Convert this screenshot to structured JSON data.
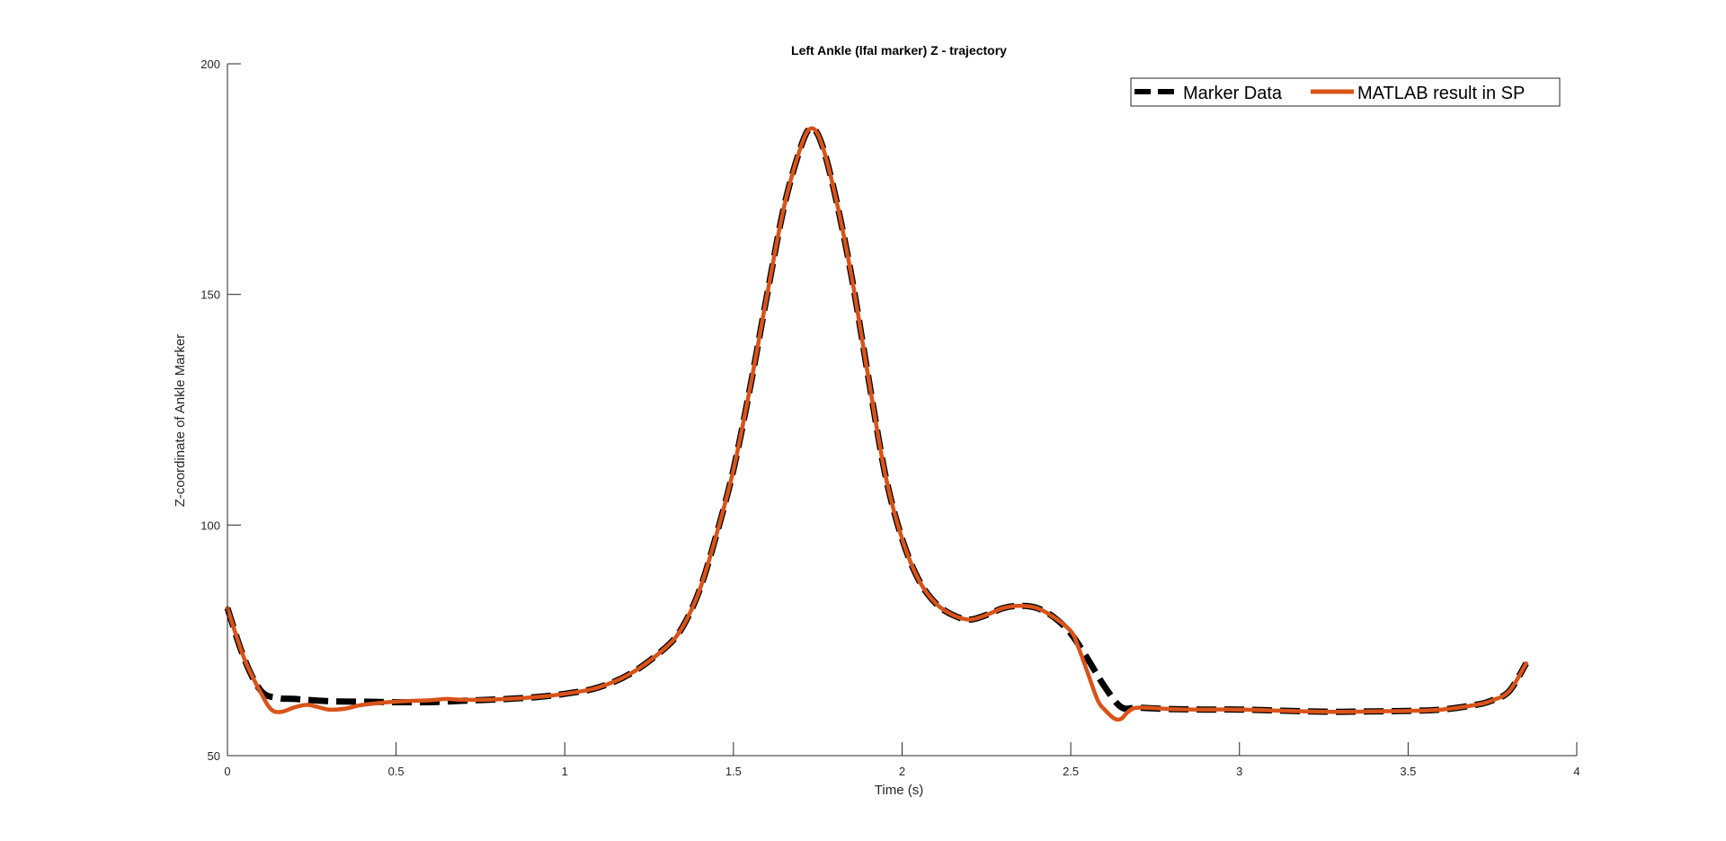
{
  "chart_data": {
    "type": "line",
    "title": "Left Ankle (lfal marker) Z - trajectory",
    "xlabel": "Time (s)",
    "ylabel": "Z-coordinate of Ankle Marker",
    "xlim": [
      0,
      4
    ],
    "ylim": [
      50,
      200
    ],
    "xticks": [
      0,
      0.5,
      1,
      1.5,
      2,
      2.5,
      3,
      3.5,
      4
    ],
    "xtick_labels": [
      "0",
      "0.5",
      "1",
      "1.5",
      "2",
      "2.5",
      "3",
      "3.5",
      "4"
    ],
    "yticks": [
      50,
      100,
      150,
      200
    ],
    "ytick_labels": [
      "50",
      "100",
      "150",
      "200"
    ],
    "grid": false,
    "legend_position": "top-right",
    "series": [
      {
        "name": "Marker Data",
        "color": "#000000",
        "line_style": "dashed",
        "x": [
          0,
          0.05,
          0.1,
          0.15,
          0.2,
          0.3,
          0.4,
          0.5,
          0.6,
          0.7,
          0.8,
          0.9,
          1.0,
          1.1,
          1.2,
          1.3,
          1.35,
          1.4,
          1.45,
          1.5,
          1.55,
          1.6,
          1.65,
          1.7,
          1.73,
          1.76,
          1.8,
          1.85,
          1.9,
          1.95,
          2.0,
          2.05,
          2.1,
          2.15,
          2.2,
          2.25,
          2.3,
          2.35,
          2.4,
          2.45,
          2.5,
          2.55,
          2.6,
          2.65,
          2.7,
          2.8,
          2.9,
          3.0,
          3.1,
          3.2,
          3.3,
          3.4,
          3.5,
          3.6,
          3.7,
          3.75,
          3.8,
          3.85
        ],
        "y": [
          82,
          71,
          64,
          62.5,
          62.3,
          61.8,
          61.7,
          61.6,
          61.6,
          61.9,
          62.2,
          62.6,
          63.4,
          64.8,
          68,
          73.5,
          78,
          86,
          98,
          112,
          130,
          150,
          169,
          182,
          186,
          183,
          172,
          154,
          132,
          111,
          97,
          88,
          83,
          80.5,
          79.5,
          80.5,
          82,
          82.5,
          82,
          80,
          76.5,
          71,
          65,
          60.5,
          60.4,
          60.1,
          60,
          60,
          59.8,
          59.6,
          59.5,
          59.6,
          59.7,
          60,
          61,
          62,
          64,
          70
        ]
      },
      {
        "name": "MATLAB result in SP",
        "color": "#D95319",
        "line_style": "solid",
        "x": [
          0,
          0.05,
          0.1,
          0.13,
          0.16,
          0.2,
          0.24,
          0.3,
          0.35,
          0.4,
          0.5,
          0.6,
          0.65,
          0.7,
          0.8,
          0.9,
          1.0,
          1.1,
          1.2,
          1.3,
          1.35,
          1.4,
          1.45,
          1.5,
          1.55,
          1.6,
          1.65,
          1.7,
          1.73,
          1.76,
          1.8,
          1.85,
          1.9,
          1.95,
          2.0,
          2.05,
          2.1,
          2.15,
          2.2,
          2.25,
          2.3,
          2.35,
          2.4,
          2.45,
          2.5,
          2.52,
          2.55,
          2.58,
          2.6,
          2.63,
          2.65,
          2.67,
          2.7,
          2.8,
          2.9,
          3.0,
          3.1,
          3.2,
          3.3,
          3.4,
          3.5,
          3.6,
          3.7,
          3.75,
          3.8,
          3.85
        ],
        "y": [
          82,
          71,
          63.5,
          60,
          59.5,
          60.5,
          61,
          60,
          60.2,
          61,
          61.7,
          62,
          62.3,
          62.1,
          62.2,
          62.6,
          63.4,
          64.8,
          68,
          73.5,
          78,
          86,
          98,
          112,
          130,
          150,
          169,
          182,
          186,
          183,
          172,
          154,
          132,
          111,
          97,
          88,
          83,
          80.5,
          79.5,
          80.5,
          82,
          82.5,
          82,
          80,
          77,
          74,
          68,
          62,
          60,
          58,
          58,
          59.5,
          60.4,
          60.1,
          60,
          60,
          59.8,
          59.6,
          59.5,
          59.6,
          59.7,
          60,
          61,
          62,
          64,
          70
        ]
      }
    ]
  }
}
